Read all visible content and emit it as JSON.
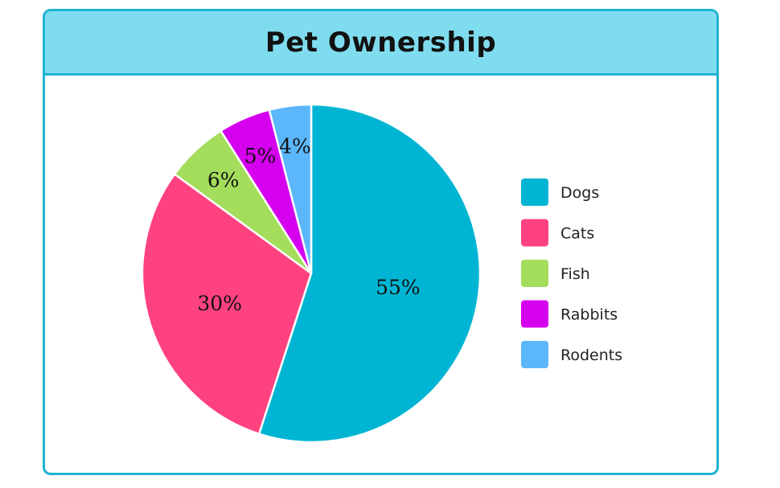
{
  "chart_data": {
    "type": "pie",
    "title": "Pet Ownership",
    "categories": [
      "Dogs",
      "Cats",
      "Fish",
      "Rabbits",
      "Rodents"
    ],
    "values": [
      55,
      30,
      6,
      5,
      4
    ],
    "labels": [
      "55%",
      "30%",
      "6%",
      "5%",
      "4%"
    ],
    "colors": [
      "#00b5d3",
      "#fe4280",
      "#a3dd5b",
      "#d500ee",
      "#5bb7fa"
    ],
    "start_angle": "12 o'clock",
    "direction": "clockwise",
    "legend": "right"
  },
  "colors": {
    "border": "#1eb3d4",
    "header_bg": "#7fdcee"
  }
}
